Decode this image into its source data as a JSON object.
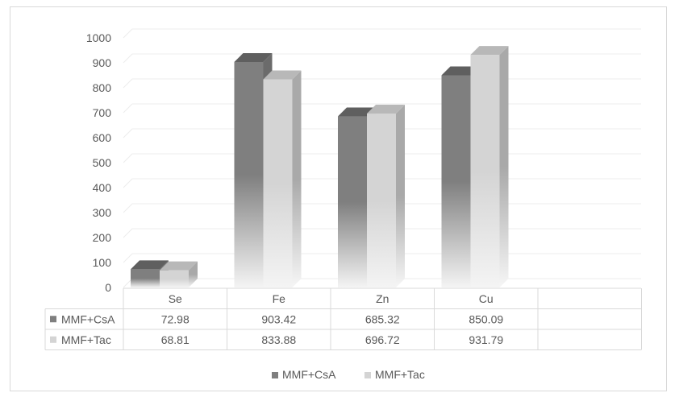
{
  "chart_data": {
    "type": "bar",
    "style": "3d-clustered-column-with-data-table",
    "categories": [
      "Se",
      "Fe",
      "Zn",
      "Cu"
    ],
    "series": [
      {
        "name": "MMF+CsA",
        "values": [
          72.98,
          903.42,
          685.32,
          850.09
        ],
        "color": "#7f7f7f",
        "top_color": "#5f5f5f",
        "side_color": "#6b6b6b"
      },
      {
        "name": "MMF+Tac",
        "values": [
          68.81,
          833.88,
          696.72,
          931.79
        ],
        "color": "#d4d4d4",
        "top_color": "#b8b8b8",
        "side_color": "#a9a9a9"
      }
    ],
    "values_display": [
      [
        "72.98",
        "903.42",
        "685.32",
        "850.09"
      ],
      [
        "68.81",
        "833.88",
        "696.72",
        "931.79"
      ]
    ],
    "ylim": [
      0,
      1000
    ],
    "yticks": [
      0,
      100,
      200,
      300,
      400,
      500,
      600,
      700,
      800,
      900,
      1000
    ],
    "title": "",
    "xlabel": "",
    "ylabel": "",
    "legend": "bottom",
    "grid": true,
    "data_table": true,
    "colors": {
      "grid": "#ececec",
      "axis_text": "#595959",
      "table_border": "#d9d9d9"
    }
  }
}
